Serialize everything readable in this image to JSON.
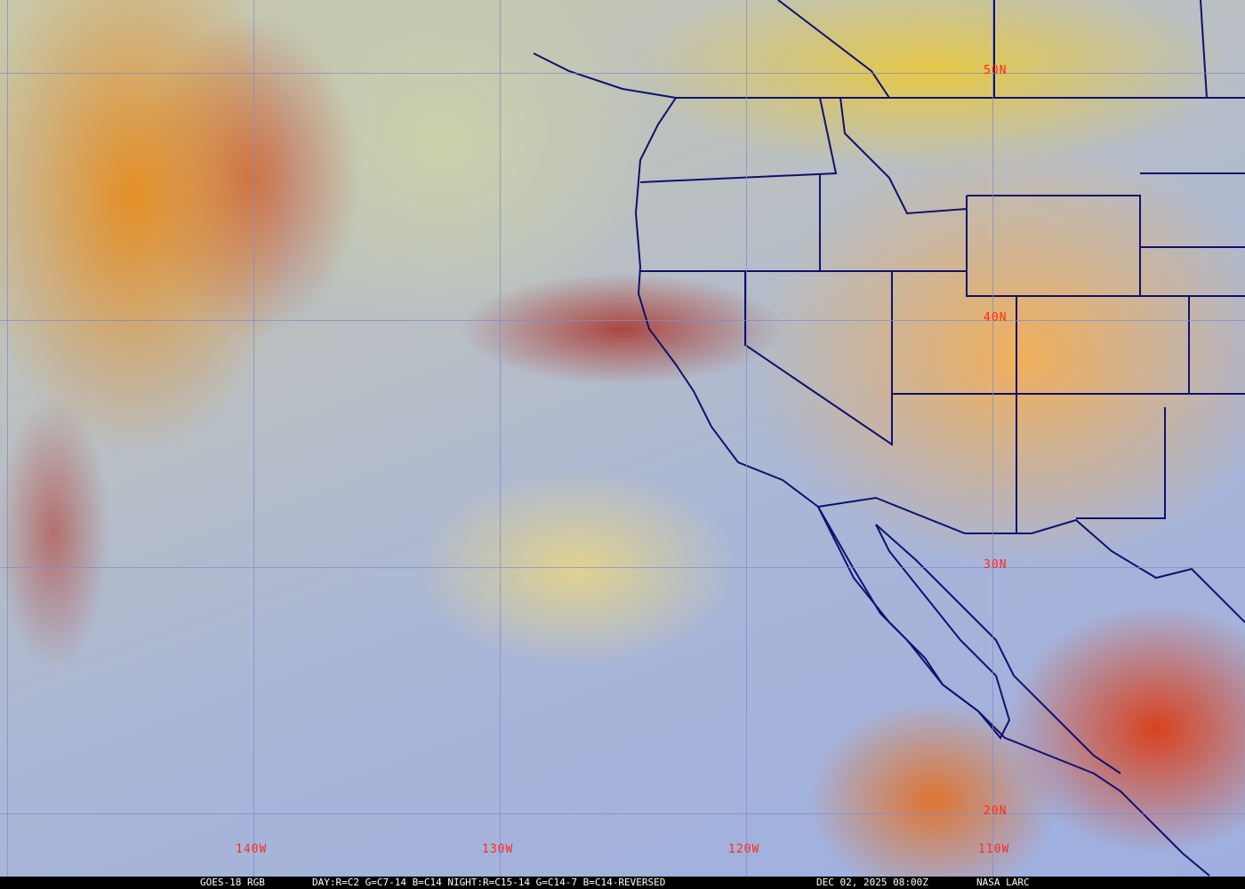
{
  "map": {
    "latitude_labels": [
      "50N",
      "40N",
      "30N",
      "20N"
    ],
    "longitude_labels": [
      "140W",
      "130W",
      "120W",
      "110W"
    ],
    "colors": {
      "grid": "#828cc8",
      "labels": "#ff2a1a",
      "borders": "#10106e",
      "caption_bg": "#000000",
      "caption_text": "#ffffff"
    }
  },
  "caption": {
    "satellite": "GOES-18 RGB",
    "recipe": "DAY:R=C2 G=C7-14 B=C14 NIGHT:R=C15-14 G=C14-7 B=C14-REVERSED",
    "timestamp": "DEC 02, 2025 08:00Z",
    "credit": "NASA LARC"
  }
}
